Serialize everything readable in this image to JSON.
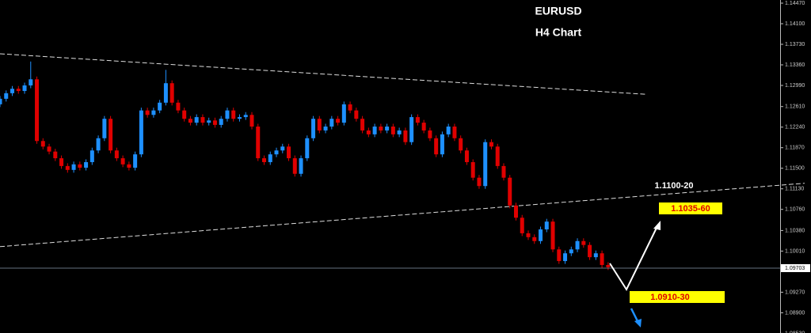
{
  "chart_data": {
    "type": "candlestick",
    "title": "EURUSD",
    "subtitle": "H4 Chart",
    "xlim": [
      0,
      127
    ],
    "ylim": [
      1.08536,
      1.14527
    ],
    "yticks": [
      {
        "value": 1.1447,
        "label": "1.14470"
      },
      {
        "value": 1.141,
        "label": "1.14100"
      },
      {
        "value": 1.1373,
        "label": "1.13730"
      },
      {
        "value": 1.1336,
        "label": "1.13360"
      },
      {
        "value": 1.1299,
        "label": "1.12990"
      },
      {
        "value": 1.1261,
        "label": "1.12610"
      },
      {
        "value": 1.1224,
        "label": "1.12240"
      },
      {
        "value": 1.1187,
        "label": "1.11870"
      },
      {
        "value": 1.115,
        "label": "1.11500"
      },
      {
        "value": 1.1113,
        "label": "1.11130"
      },
      {
        "value": 1.1076,
        "label": "1.10760"
      },
      {
        "value": 1.1038,
        "label": "1.10380"
      },
      {
        "value": 1.1001,
        "label": "1.10010"
      },
      {
        "value": 1.0927,
        "label": "1.09270"
      },
      {
        "value": 1.089,
        "label": "1.08900"
      },
      {
        "value": 1.0853,
        "label": "1.08530"
      }
    ],
    "current_price": 1.09703,
    "up_color": "#1e90ff",
    "down_color": "#e00000",
    "open": [
      1.1265,
      1.1275,
      1.1285,
      1.1293,
      1.1289,
      1.1299,
      1.131,
      1.1199,
      1.1189,
      1.118,
      1.1168,
      1.1154,
      1.1147,
      1.1157,
      1.1151,
      1.1161,
      1.1182,
      1.1204,
      1.1239,
      1.1182,
      1.1168,
      1.1157,
      1.1151,
      1.1175,
      1.1254,
      1.1246,
      1.1254,
      1.1268,
      1.1303,
      1.1268,
      1.1254,
      1.1239,
      1.1232,
      1.1242,
      1.1232,
      1.1236,
      1.1228,
      1.1239,
      1.1254,
      1.1239,
      1.1242,
      1.1246,
      1.1225,
      1.1168,
      1.1161,
      1.1175,
      1.1182,
      1.1189,
      1.1168,
      1.114,
      1.1168,
      1.1204,
      1.1239,
      1.1218,
      1.1225,
      1.1239,
      1.1232,
      1.1265,
      1.1254,
      1.1239,
      1.1218,
      1.1211,
      1.1225,
      1.1218,
      1.1225,
      1.1211,
      1.1218,
      1.1197,
      1.1242,
      1.1232,
      1.1218,
      1.1204,
      1.1175,
      1.1211,
      1.1225,
      1.1204,
      1.1182,
      1.1161,
      1.1133,
      1.1118,
      1.1197,
      1.1189,
      1.1154,
      1.1133,
      1.1083,
      1.1061,
      1.1033,
      1.1026,
      1.1019,
      1.104,
      1.1054,
      1.1004,
      1.0983,
      1.0997,
      1.1004,
      1.1019,
      1.1012,
      1.099,
      1.0997,
      1.0976
    ],
    "high": [
      1.128,
      1.129,
      1.1298,
      1.1298,
      1.1304,
      1.1342,
      1.1315,
      1.1204,
      1.1194,
      1.1185,
      1.1173,
      1.1159,
      1.1162,
      1.1162,
      1.1166,
      1.1187,
      1.1209,
      1.1244,
      1.1244,
      1.1187,
      1.1173,
      1.1162,
      1.118,
      1.1259,
      1.1259,
      1.1259,
      1.1273,
      1.1327,
      1.1308,
      1.1273,
      1.1259,
      1.1244,
      1.1247,
      1.1247,
      1.1241,
      1.1241,
      1.1244,
      1.1259,
      1.1259,
      1.1247,
      1.1251,
      1.1251,
      1.123,
      1.1173,
      1.118,
      1.1187,
      1.1194,
      1.1194,
      1.1173,
      1.1173,
      1.1209,
      1.1244,
      1.1244,
      1.123,
      1.1244,
      1.1244,
      1.127,
      1.127,
      1.1259,
      1.1244,
      1.1223,
      1.123,
      1.123,
      1.123,
      1.123,
      1.1223,
      1.1223,
      1.1247,
      1.1247,
      1.1237,
      1.1223,
      1.1209,
      1.1216,
      1.123,
      1.123,
      1.1209,
      1.1187,
      1.1166,
      1.1138,
      1.1202,
      1.1202,
      1.1194,
      1.1159,
      1.1138,
      1.1088,
      1.1066,
      1.1038,
      1.1031,
      1.1045,
      1.1059,
      1.1059,
      1.1009,
      1.1002,
      1.1009,
      1.1024,
      1.1024,
      1.1017,
      1.1002,
      1.1002,
      1.0981
    ],
    "low": [
      1.126,
      1.127,
      1.128,
      1.1284,
      1.1284,
      1.1294,
      1.1194,
      1.1184,
      1.1175,
      1.1163,
      1.1149,
      1.1142,
      1.1142,
      1.1146,
      1.1146,
      1.1156,
      1.1177,
      1.1199,
      1.1177,
      1.1163,
      1.1152,
      1.1146,
      1.1146,
      1.117,
      1.1241,
      1.1241,
      1.1249,
      1.1263,
      1.1263,
      1.1249,
      1.1234,
      1.1227,
      1.1227,
      1.1227,
      1.1227,
      1.1223,
      1.1223,
      1.1234,
      1.1234,
      1.1234,
      1.1237,
      1.122,
      1.1163,
      1.1156,
      1.1156,
      1.117,
      1.1177,
      1.1163,
      1.1135,
      1.1135,
      1.1163,
      1.1199,
      1.1213,
      1.1213,
      1.122,
      1.1227,
      1.1227,
      1.1249,
      1.1234,
      1.1213,
      1.1206,
      1.1206,
      1.1213,
      1.1213,
      1.1206,
      1.1206,
      1.1192,
      1.1192,
      1.1227,
      1.1213,
      1.1199,
      1.117,
      1.117,
      1.1206,
      1.1199,
      1.1177,
      1.1156,
      1.1128,
      1.1113,
      1.1113,
      1.1184,
      1.1149,
      1.1128,
      1.1078,
      1.1056,
      1.1028,
      1.1021,
      1.1014,
      1.1014,
      1.1035,
      1.0999,
      1.0978,
      1.0978,
      1.0992,
      1.0999,
      1.1007,
      1.0985,
      1.0985,
      1.0971,
      1.0967
    ],
    "close": [
      1.1275,
      1.1285,
      1.1293,
      1.1289,
      1.1299,
      1.131,
      1.1199,
      1.1189,
      1.118,
      1.1168,
      1.1154,
      1.1147,
      1.1157,
      1.1151,
      1.1161,
      1.1182,
      1.1204,
      1.1239,
      1.1182,
      1.1168,
      1.1157,
      1.1151,
      1.1175,
      1.1254,
      1.1246,
      1.1254,
      1.1268,
      1.1303,
      1.1268,
      1.1254,
      1.1239,
      1.1232,
      1.1242,
      1.1232,
      1.1236,
      1.1228,
      1.1239,
      1.1254,
      1.1239,
      1.1242,
      1.1246,
      1.1225,
      1.1168,
      1.1161,
      1.1175,
      1.1182,
      1.1189,
      1.1168,
      1.114,
      1.1168,
      1.1204,
      1.1239,
      1.1218,
      1.1225,
      1.1239,
      1.1232,
      1.1265,
      1.1254,
      1.1239,
      1.1218,
      1.1211,
      1.1225,
      1.1218,
      1.1225,
      1.1211,
      1.1218,
      1.1197,
      1.1242,
      1.1232,
      1.1218,
      1.1204,
      1.1175,
      1.1211,
      1.1225,
      1.1204,
      1.1182,
      1.1161,
      1.1133,
      1.1118,
      1.1197,
      1.1189,
      1.1154,
      1.1133,
      1.1083,
      1.1061,
      1.1033,
      1.1026,
      1.1019,
      1.104,
      1.1054,
      1.1004,
      1.0983,
      1.0997,
      1.1004,
      1.1019,
      1.1012,
      1.099,
      1.0997,
      1.0976,
      1.0972
    ],
    "trendlines": [
      {
        "x": [
          0,
          105.2
        ],
        "y": [
          1.1356,
          1.1283
        ],
        "color": "#dddddd"
      },
      {
        "x": [
          0,
          131
        ],
        "y": [
          1.1009,
          1.1123
        ],
        "color": "#dddddd"
      }
    ],
    "annotations": [
      "1.1100-20",
      "1.1035-60",
      "1.0910-30"
    ]
  }
}
